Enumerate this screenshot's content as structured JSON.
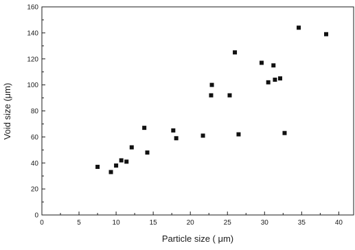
{
  "chart_data": {
    "type": "scatter",
    "title": "",
    "xlabel": "Particle size ( μm)",
    "ylabel": "Void size (μm)",
    "xlim": [
      0,
      42
    ],
    "ylim": [
      0,
      160
    ],
    "xticks": [
      0,
      5,
      10,
      15,
      20,
      25,
      30,
      35,
      40
    ],
    "yticks": [
      0,
      20,
      40,
      60,
      80,
      100,
      120,
      140,
      160
    ],
    "xtick_labels": [
      "0",
      "5",
      "10",
      "15",
      "20",
      "25",
      "30",
      "35",
      "40"
    ],
    "ytick_labels": [
      "0",
      "20",
      "40",
      "60",
      "80",
      "100",
      "120",
      "140",
      "160"
    ],
    "grid": false,
    "legend": "none",
    "marker_color": "#111111",
    "points": [
      {
        "x": 7.5,
        "y": 37
      },
      {
        "x": 9.3,
        "y": 33
      },
      {
        "x": 10.0,
        "y": 38
      },
      {
        "x": 10.7,
        "y": 42
      },
      {
        "x": 11.4,
        "y": 41
      },
      {
        "x": 12.1,
        "y": 52
      },
      {
        "x": 13.8,
        "y": 67
      },
      {
        "x": 14.2,
        "y": 48
      },
      {
        "x": 17.7,
        "y": 65
      },
      {
        "x": 18.1,
        "y": 59
      },
      {
        "x": 21.7,
        "y": 61
      },
      {
        "x": 22.8,
        "y": 92
      },
      {
        "x": 22.9,
        "y": 100
      },
      {
        "x": 25.3,
        "y": 92
      },
      {
        "x": 26.0,
        "y": 125
      },
      {
        "x": 26.5,
        "y": 62
      },
      {
        "x": 29.6,
        "y": 117
      },
      {
        "x": 30.5,
        "y": 102
      },
      {
        "x": 31.2,
        "y": 115
      },
      {
        "x": 31.4,
        "y": 104
      },
      {
        "x": 32.1,
        "y": 105
      },
      {
        "x": 32.7,
        "y": 63
      },
      {
        "x": 34.6,
        "y": 144
      },
      {
        "x": 38.3,
        "y": 139
      }
    ]
  }
}
